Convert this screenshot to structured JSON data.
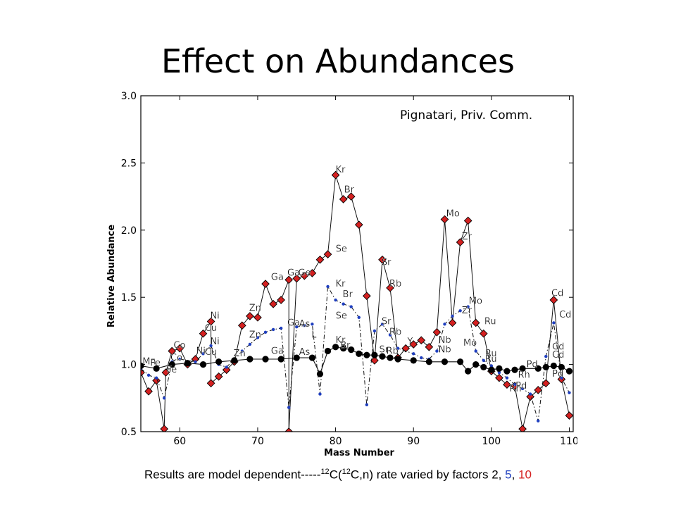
{
  "slide": {
    "title": "Effect on Abundances",
    "credit": "Pignatari, Priv. Comm.",
    "caption": {
      "pre": "Results are model dependent-----",
      "m1": "12",
      "c1": "C(",
      "m2": "12",
      "c2": "C,n) rate varied by factors ",
      "f1": "2",
      "sep1": ", ",
      "f2": "5",
      "sep2": ", ",
      "f3": "10"
    }
  },
  "chart_data": {
    "type": "line",
    "xlabel": "Mass Number",
    "ylabel": "Relative Abundance",
    "xlim": [
      55,
      110.5
    ],
    "ylim": [
      0.5,
      3.0
    ],
    "xticks": [
      "60",
      "70",
      "80",
      "90",
      "100",
      "110"
    ],
    "yticks": [
      "0.5",
      "1.0",
      "1.5",
      "2.0",
      "2.5",
      "3.0"
    ],
    "grid": false,
    "colors": {
      "factor2": "#000000",
      "factor5": "#1f3fbf",
      "factor10": "#d42020"
    },
    "series": [
      {
        "key": "factor2",
        "marker": "circle",
        "points": [
          [
            55,
            0.99
          ],
          [
            57,
            0.97
          ],
          [
            59,
            1.0
          ],
          [
            61,
            1.01
          ],
          [
            63,
            1.0
          ],
          [
            65,
            1.02
          ],
          [
            67,
            1.03
          ],
          [
            69,
            1.04
          ],
          [
            71,
            1.04
          ],
          [
            73,
            1.04
          ],
          [
            75,
            1.05
          ],
          [
            77,
            1.05
          ],
          [
            78,
            0.93
          ],
          [
            79,
            1.1
          ],
          [
            80,
            1.13
          ],
          [
            81,
            1.12
          ],
          [
            82,
            1.11
          ],
          [
            83,
            1.08
          ],
          [
            84,
            1.07
          ],
          [
            85,
            1.07
          ],
          [
            86,
            1.06
          ],
          [
            87,
            1.05
          ],
          [
            88,
            1.04
          ],
          [
            90,
            1.03
          ],
          [
            92,
            1.02
          ],
          [
            94,
            1.02
          ],
          [
            96,
            1.02
          ],
          [
            97,
            0.95
          ],
          [
            98,
            1.0
          ],
          [
            99,
            0.98
          ],
          [
            100,
            0.96
          ],
          [
            101,
            0.97
          ],
          [
            102,
            0.95
          ],
          [
            103,
            0.96
          ],
          [
            104,
            0.97
          ],
          [
            106,
            0.97
          ],
          [
            107,
            0.98
          ],
          [
            108,
            0.99
          ],
          [
            109,
            0.98
          ],
          [
            110,
            0.95
          ]
        ]
      },
      {
        "key": "factor5",
        "marker": "dot",
        "points": [
          [
            55,
            0.97
          ],
          [
            56,
            0.92
          ],
          [
            57,
            0.9
          ],
          [
            58,
            0.75
          ],
          [
            59,
            1.02
          ],
          [
            60,
            1.04
          ],
          [
            62,
            1.02
          ],
          [
            63,
            1.08
          ],
          [
            64,
            1.14
          ],
          [
            65,
            1.0
          ],
          [
            66,
            0.98
          ],
          [
            67,
            1.04
          ],
          [
            68,
            1.1
          ],
          [
            69,
            1.15
          ],
          [
            70,
            1.2
          ],
          [
            71,
            1.24
          ],
          [
            72,
            1.26
          ],
          [
            73,
            1.27
          ],
          [
            74,
            0.68
          ],
          [
            75,
            1.28
          ],
          [
            76,
            1.29
          ],
          [
            77,
            1.3
          ],
          [
            78,
            0.78
          ],
          [
            79,
            1.58
          ],
          [
            80,
            1.48
          ],
          [
            81,
            1.45
          ],
          [
            82,
            1.43
          ],
          [
            83,
            1.35
          ],
          [
            84,
            0.7
          ],
          [
            85,
            1.25
          ],
          [
            86,
            1.3
          ],
          [
            87,
            1.22
          ],
          [
            88,
            1.12
          ],
          [
            90,
            1.08
          ],
          [
            91,
            1.05
          ],
          [
            92,
            1.04
          ],
          [
            93,
            1.1
          ],
          [
            94,
            1.3
          ],
          [
            95,
            1.36
          ],
          [
            96,
            1.4
          ],
          [
            97,
            1.43
          ],
          [
            98,
            1.1
          ],
          [
            99,
            1.03
          ],
          [
            100,
            0.99
          ],
          [
            101,
            0.94
          ],
          [
            102,
            0.9
          ],
          [
            103,
            0.85
          ],
          [
            104,
            0.82
          ],
          [
            105,
            0.78
          ],
          [
            106,
            0.58
          ],
          [
            107,
            1.06
          ],
          [
            108,
            1.31
          ],
          [
            109,
            0.9
          ],
          [
            110,
            0.79
          ]
        ]
      },
      {
        "key": "factor10",
        "marker": "diamond",
        "points": [
          [
            55,
            0.94
          ],
          [
            56,
            0.8
          ],
          [
            57,
            0.88
          ],
          [
            58,
            0.52
          ],
          [
            58.2,
            0.94
          ],
          [
            59,
            1.1
          ],
          [
            60,
            1.12
          ],
          [
            61,
            1.0
          ],
          [
            62,
            1.04
          ],
          [
            63,
            1.23
          ],
          [
            64,
            1.32
          ],
          [
            64,
            0.86
          ],
          [
            65,
            0.91
          ],
          [
            66,
            0.96
          ],
          [
            67,
            1.02
          ],
          [
            68,
            1.29
          ],
          [
            69,
            1.36
          ],
          [
            70,
            1.35
          ],
          [
            71,
            1.6
          ],
          [
            72,
            1.45
          ],
          [
            73,
            1.48
          ],
          [
            74,
            1.63
          ],
          [
            74,
            0.5
          ],
          [
            75,
            1.64
          ],
          [
            76,
            1.66
          ],
          [
            77,
            1.68
          ],
          [
            78,
            1.78
          ],
          [
            79,
            1.82
          ],
          [
            80,
            2.41
          ],
          [
            81,
            2.23
          ],
          [
            82,
            2.25
          ],
          [
            83,
            2.04
          ],
          [
            84,
            1.51
          ],
          [
            85,
            1.03
          ],
          [
            86,
            1.78
          ],
          [
            87,
            1.57
          ],
          [
            88,
            1.05
          ],
          [
            89,
            1.12
          ],
          [
            90,
            1.15
          ],
          [
            91,
            1.18
          ],
          [
            92,
            1.13
          ],
          [
            93,
            1.24
          ],
          [
            94,
            2.08
          ],
          [
            95,
            1.31
          ],
          [
            96,
            1.91
          ],
          [
            97,
            2.07
          ],
          [
            98,
            1.31
          ],
          [
            99,
            1.23
          ],
          [
            100,
            0.95
          ],
          [
            101,
            0.9
          ],
          [
            102,
            0.85
          ],
          [
            103,
            0.84
          ],
          [
            104,
            0.52
          ],
          [
            105,
            0.76
          ],
          [
            106,
            0.81
          ],
          [
            107,
            0.86
          ],
          [
            108,
            1.48
          ],
          [
            109,
            0.89
          ],
          [
            110,
            0.62
          ]
        ]
      }
    ],
    "annotations": [
      {
        "text": "Mn",
        "x": 55.2,
        "y": 1.0
      },
      {
        "text": "Fe",
        "x": 56.2,
        "y": 0.99
      },
      {
        "text": "Fe",
        "x": 58.3,
        "y": 0.94
      },
      {
        "text": "Co",
        "x": 59.2,
        "y": 1.12
      },
      {
        "text": "Co",
        "x": 58.8,
        "y": 1.03
      },
      {
        "text": "Ni",
        "x": 62.1,
        "y": 1.08
      },
      {
        "text": "Ni",
        "x": 63.9,
        "y": 1.34
      },
      {
        "text": "Cu",
        "x": 63.2,
        "y": 1.25
      },
      {
        "text": "Ni",
        "x": 63.9,
        "y": 1.15
      },
      {
        "text": "Cu",
        "x": 63.2,
        "y": 1.07
      },
      {
        "text": "Zn",
        "x": 68.9,
        "y": 1.4
      },
      {
        "text": "Zn",
        "x": 68.9,
        "y": 1.2
      },
      {
        "text": "Zn",
        "x": 66.9,
        "y": 1.06
      },
      {
        "text": "Ga",
        "x": 71.7,
        "y": 1.63
      },
      {
        "text": "Ga",
        "x": 73.8,
        "y": 1.66
      },
      {
        "text": "Ga",
        "x": 73.8,
        "y": 1.29
      },
      {
        "text": "Ga",
        "x": 71.7,
        "y": 1.08
      },
      {
        "text": "As",
        "x": 75.3,
        "y": 1.28
      },
      {
        "text": "As",
        "x": 75.3,
        "y": 1.07
      },
      {
        "text": "Ge",
        "x": 75.2,
        "y": 1.66
      },
      {
        "text": "L",
        "x": 76.9,
        "y": 1.2
      },
      {
        "text": "Kr",
        "x": 80.0,
        "y": 2.43
      },
      {
        "text": "Br",
        "x": 81.1,
        "y": 2.28
      },
      {
        "text": "Se",
        "x": 80.0,
        "y": 1.84
      },
      {
        "text": "Kr",
        "x": 80.0,
        "y": 1.58
      },
      {
        "text": "Br",
        "x": 80.9,
        "y": 1.5
      },
      {
        "text": "Se",
        "x": 80.0,
        "y": 1.34
      },
      {
        "text": "Kr",
        "x": 80.0,
        "y": 1.16
      },
      {
        "text": "Br",
        "x": 80.6,
        "y": 1.12
      },
      {
        "text": "Sr",
        "x": 85.9,
        "y": 1.74
      },
      {
        "text": "Rb",
        "x": 86.9,
        "y": 1.58
      },
      {
        "text": "Sr",
        "x": 85.9,
        "y": 1.3
      },
      {
        "text": "Rb",
        "x": 86.9,
        "y": 1.22
      },
      {
        "text": "Sr",
        "x": 85.6,
        "y": 1.09
      },
      {
        "text": "Rb",
        "x": 86.5,
        "y": 1.08
      },
      {
        "text": "Y",
        "x": 89.2,
        "y": 1.15
      },
      {
        "text": "Mo",
        "x": 94.2,
        "y": 2.1
      },
      {
        "text": "Zr",
        "x": 96.2,
        "y": 1.93
      },
      {
        "text": "Mo",
        "x": 97.1,
        "y": 1.45
      },
      {
        "text": "Zr",
        "x": 96.2,
        "y": 1.38
      },
      {
        "text": "Ru",
        "x": 99.1,
        "y": 1.3
      },
      {
        "text": "Nb",
        "x": 93.2,
        "y": 1.16
      },
      {
        "text": "Mo",
        "x": 96.4,
        "y": 1.14
      },
      {
        "text": "Nb",
        "x": 93.2,
        "y": 1.09
      },
      {
        "text": "Ru",
        "x": 99.2,
        "y": 1.06
      },
      {
        "text": "Ru",
        "x": 99.2,
        "y": 1.02
      },
      {
        "text": "Pd",
        "x": 104.5,
        "y": 0.98
      },
      {
        "text": "Rh",
        "x": 103.4,
        "y": 0.9
      },
      {
        "text": "Pd",
        "x": 103.1,
        "y": 0.82
      },
      {
        "text": "Rh",
        "x": 102.3,
        "y": 0.8
      },
      {
        "text": "Cd",
        "x": 107.7,
        "y": 1.51
      },
      {
        "text": "Cd",
        "x": 108.7,
        "y": 1.35
      },
      {
        "text": "Cd",
        "x": 107.8,
        "y": 1.11
      },
      {
        "text": "Cd",
        "x": 107.8,
        "y": 1.05
      },
      {
        "text": "Pd",
        "x": 107.8,
        "y": 0.91
      }
    ]
  }
}
